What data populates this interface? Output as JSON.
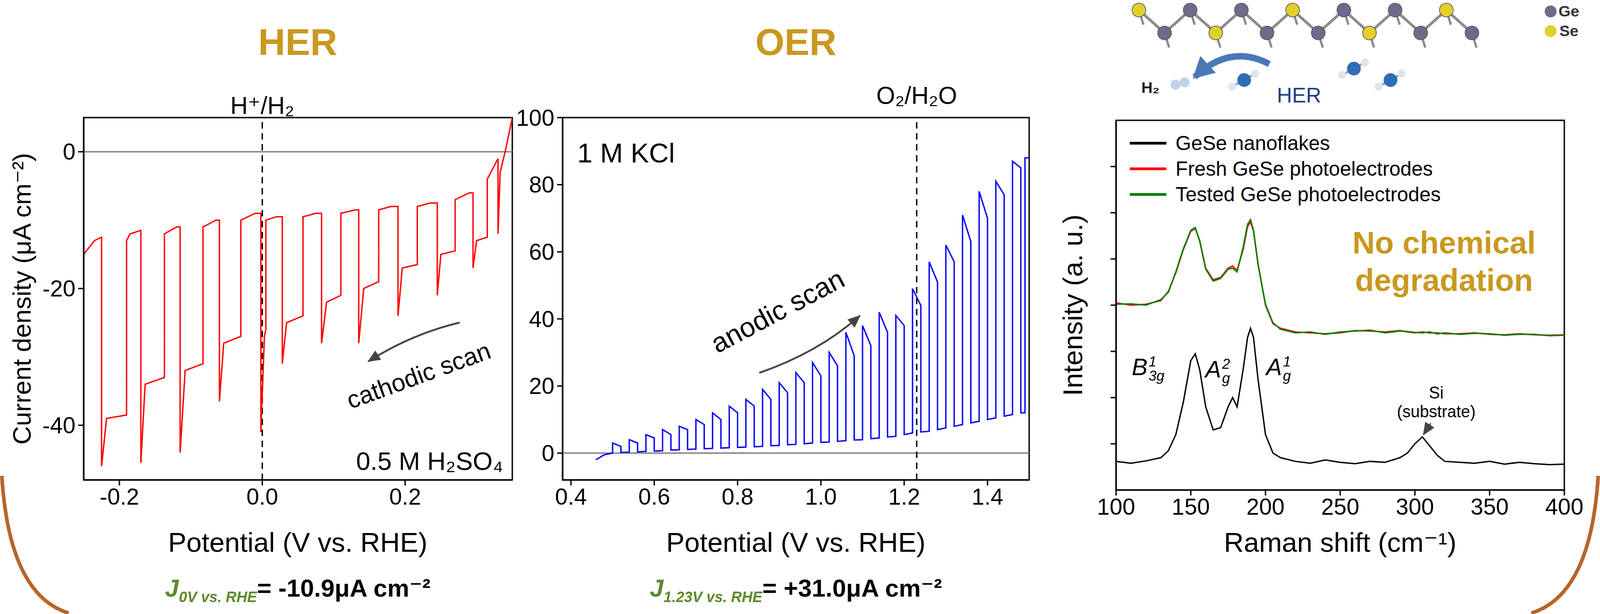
{
  "chart_data": [
    {
      "type": "line",
      "title": "HER",
      "xlabel": "Potential (V vs. RHE)",
      "ylabel": "Current density (μA cm⁻²)",
      "x": [
        -0.25,
        -0.235,
        -0.225,
        -0.225,
        -0.218,
        -0.19,
        -0.19,
        -0.185,
        -0.17,
        -0.17,
        -0.164,
        -0.137,
        -0.137,
        -0.12,
        -0.115,
        -0.115,
        -0.108,
        -0.083,
        -0.083,
        -0.065,
        -0.06,
        -0.06,
        -0.054,
        -0.03,
        -0.03,
        -0.01,
        -0.002,
        -0.002,
        0.003,
        0.005,
        0.005,
        0.02,
        0.028,
        0.028,
        0.034,
        0.057,
        0.057,
        0.075,
        0.083,
        0.083,
        0.09,
        0.11,
        0.11,
        0.13,
        0.135,
        0.135,
        0.142,
        0.163,
        0.163,
        0.18,
        0.19,
        0.19,
        0.196,
        0.217,
        0.217,
        0.235,
        0.245,
        0.245,
        0.25,
        0.27,
        0.27,
        0.29,
        0.295,
        0.295,
        0.3,
        0.315,
        0.315,
        0.325,
        0.33,
        0.33,
        0.333,
        0.34,
        0.35
      ],
      "series": [
        {
          "color": "#ff0000",
          "values": [
            -15,
            -13,
            -12.5,
            -46,
            -39,
            -38.5,
            -13,
            -12,
            -11.5,
            -45.5,
            -34,
            -33,
            -12,
            -11,
            -11,
            -44,
            -32,
            -31,
            -11,
            -10,
            -10,
            -36.5,
            -28,
            -27,
            -10,
            -9,
            -9,
            -41,
            -27,
            -26,
            -10,
            -9.5,
            -9.5,
            -31,
            -25,
            -24,
            -9.5,
            -9,
            -9,
            -28,
            -22,
            -21,
            -9,
            -8.5,
            -8.5,
            -28,
            -20,
            -19,
            -8.5,
            -8,
            -8,
            -24,
            -17,
            -16.5,
            -8,
            -7.5,
            -7.5,
            -21,
            -15,
            -14.5,
            -7,
            -6,
            -6,
            -17,
            -13,
            -12.5,
            -4,
            -2,
            -1,
            -12,
            -3,
            0,
            5
          ]
        }
      ],
      "xlim": [
        -0.25,
        0.35
      ],
      "xticks": [
        -0.2,
        {
          "value": 0,
          "label": "0.0"
        },
        0.2
      ],
      "ylim": [
        -48,
        5
      ],
      "yticks": [
        -40,
        -20,
        0
      ],
      "reference_lines": [
        {
          "y": 0,
          "color": "#808080",
          "line_style": "solid"
        },
        {
          "x": 0,
          "label": "H⁺/H₂",
          "color": "#000000",
          "line_style": "dashed"
        }
      ],
      "annotations": [
        {
          "text": "cathodic scan"
        },
        {
          "text": "0.5 M H₂SO₄"
        }
      ],
      "footer": {
        "symbol": "J",
        "subscript": "0V vs. RHE",
        "text": "= -10.9μA cm⁻²"
      }
    },
    {
      "type": "line",
      "title": "OER",
      "xlabel": "Potential (V vs. RHE)",
      "x": [
        0.46,
        0.48,
        0.5,
        0.5,
        0.52,
        0.52,
        0.54,
        0.54,
        0.56,
        0.56,
        0.58,
        0.58,
        0.6,
        0.6,
        0.62,
        0.62,
        0.64,
        0.64,
        0.66,
        0.66,
        0.68,
        0.68,
        0.7,
        0.7,
        0.72,
        0.72,
        0.74,
        0.74,
        0.76,
        0.76,
        0.78,
        0.78,
        0.8,
        0.8,
        0.82,
        0.82,
        0.84,
        0.84,
        0.86,
        0.86,
        0.88,
        0.88,
        0.9,
        0.9,
        0.92,
        0.92,
        0.94,
        0.94,
        0.96,
        0.96,
        0.98,
        0.98,
        1,
        1,
        1.02,
        1.02,
        1.04,
        1.04,
        1.06,
        1.06,
        1.08,
        1.08,
        1.1,
        1.1,
        1.12,
        1.12,
        1.14,
        1.14,
        1.16,
        1.16,
        1.18,
        1.18,
        1.2,
        1.2,
        1.22,
        1.22,
        1.24,
        1.24,
        1.26,
        1.26,
        1.28,
        1.28,
        1.3,
        1.3,
        1.32,
        1.32,
        1.34,
        1.34,
        1.36,
        1.36,
        1.38,
        1.38,
        1.4,
        1.4,
        1.42,
        1.42,
        1.44,
        1.44,
        1.46,
        1.46,
        1.48,
        1.48,
        1.49,
        1.49,
        1.5
      ],
      "series": [
        {
          "color": "#0000ff",
          "values": [
            -2,
            -0.5,
            0,
            3,
            2,
            0.2,
            0.3,
            4,
            3,
            0.4,
            0.5,
            5.5,
            4.5,
            0.6,
            0.7,
            7,
            5.5,
            0.9,
            1,
            8,
            7,
            1.1,
            1.2,
            10,
            8.5,
            1.3,
            1.4,
            12,
            10,
            1.5,
            1.6,
            14,
            12,
            1.7,
            1.8,
            16,
            14,
            1.9,
            2,
            19,
            16,
            2.2,
            2.3,
            21,
            18,
            2.5,
            2.6,
            24,
            21,
            2.8,
            3,
            27,
            23,
            3.2,
            3.3,
            30,
            26,
            3.5,
            3.7,
            36,
            29,
            3.9,
            4,
            38,
            32,
            4.3,
            4.5,
            42,
            36,
            4.8,
            5,
            41,
            38,
            5.5,
            6,
            49,
            44,
            6.3,
            6.5,
            57,
            51,
            7,
            7.5,
            62,
            57,
            8,
            8.5,
            71,
            63,
            9,
            9.5,
            78,
            70,
            10,
            10.5,
            81,
            77,
            11,
            11.5,
            87,
            85,
            12,
            12,
            88,
            88
          ]
        }
      ],
      "xlim": [
        0.38,
        1.5
      ],
      "xticks": [
        0.4,
        0.6,
        0.8,
        {
          "value": 1,
          "label": "1.0"
        },
        1.2,
        1.4
      ],
      "ylim": [
        -8,
        100
      ],
      "yticks": [
        0,
        20,
        40,
        60,
        80,
        100
      ],
      "reference_lines": [
        {
          "y": 0,
          "color": "#808080",
          "line_style": "solid"
        },
        {
          "x": 1.23,
          "label": "O₂/H₂O",
          "color": "#000000",
          "line_style": "dashed"
        }
      ],
      "annotations": [
        {
          "text": "1 M KCl"
        },
        {
          "text": "anodic scan"
        }
      ],
      "footer": {
        "symbol": "J",
        "subscript": "1.23V vs. RHE",
        "text": "= +31.0μA cm⁻²"
      }
    },
    {
      "type": "line",
      "xlabel": "Raman shift (cm⁻¹)",
      "ylabel": "Intensity (a. u.)",
      "x": [
        100,
        110,
        120,
        130,
        135,
        140,
        145,
        150,
        153,
        156,
        160,
        165,
        170,
        175,
        178,
        181,
        185,
        188,
        190,
        192,
        195,
        200,
        205,
        210,
        220,
        230,
        240,
        250,
        260,
        270,
        280,
        290,
        295,
        300,
        305,
        310,
        315,
        320,
        330,
        340,
        350,
        360,
        370,
        380,
        390,
        400
      ],
      "series": [
        {
          "name": "GeSe nanoflakes",
          "color": "#000000",
          "values": [
            0.62,
            0.58,
            0.63,
            0.7,
            0.85,
            1.2,
            1.9,
            2.8,
            2.95,
            2.6,
            1.8,
            1.3,
            1.35,
            1.8,
            2.0,
            1.8,
            2.6,
            3.3,
            3.5,
            3.3,
            2.4,
            1.2,
            0.8,
            0.7,
            0.62,
            0.58,
            0.65,
            0.6,
            0.57,
            0.62,
            0.6,
            0.7,
            0.8,
            1.0,
            1.15,
            0.95,
            0.75,
            0.62,
            0.6,
            0.58,
            0.62,
            0.56,
            0.6,
            0.57,
            0.55,
            0.56
          ]
        },
        {
          "name": "Fresh GeSe photoelectrodes",
          "color": "#ff0000",
          "values": [
            4.05,
            4.0,
            4.02,
            4.1,
            4.3,
            4.7,
            5.2,
            5.6,
            5.66,
            5.4,
            4.8,
            4.55,
            4.6,
            4.8,
            4.85,
            4.75,
            5.2,
            5.7,
            5.8,
            5.6,
            4.9,
            4.0,
            3.6,
            3.5,
            3.42,
            3.4,
            3.38,
            3.4,
            3.45,
            3.44,
            3.42,
            3.45,
            3.42,
            3.4,
            3.42,
            3.4,
            3.4,
            3.38,
            3.38,
            3.4,
            3.37,
            3.36,
            3.38,
            3.36,
            3.35,
            3.36
          ]
        },
        {
          "name": "Tested GeSe photoelectrodes",
          "color": "#008000",
          "values": [
            4.02,
            4.03,
            4.0,
            4.12,
            4.28,
            4.72,
            5.22,
            5.62,
            5.68,
            5.38,
            4.78,
            4.52,
            4.58,
            4.78,
            4.8,
            4.72,
            5.25,
            5.75,
            5.85,
            5.62,
            4.88,
            4.02,
            3.62,
            3.48,
            3.4,
            3.42,
            3.37,
            3.42,
            3.44,
            3.46,
            3.4,
            3.44,
            3.43,
            3.41,
            3.4,
            3.42,
            3.38,
            3.4,
            3.37,
            3.39,
            3.38,
            3.35,
            3.37,
            3.37,
            3.34,
            3.35
          ]
        }
      ],
      "xlim": [
        100,
        400
      ],
      "xticks": [
        100,
        150,
        200,
        250,
        300,
        350,
        400
      ],
      "ylim": [
        0,
        8
      ],
      "yticks": [
        1,
        2,
        3,
        4,
        5,
        6,
        7
      ],
      "tick_labels": "x",
      "legend": "upper left",
      "annotations": [
        {
          "text": "No chemical degradation"
        },
        {
          "lines": [
            "Si",
            "(substrate)"
          ]
        }
      ],
      "peak_labels": [
        {
          "text": "B",
          "superscript": "1",
          "subscript": "3g"
        },
        {
          "text": "A",
          "superscript": "2",
          "subscript": "g"
        },
        {
          "text": "A",
          "superscript": "1",
          "subscript": "g"
        }
      ],
      "diagram": {
        "atoms": [
          {
            "label": "Ge",
            "color": "#6D6A8C"
          },
          {
            "label": "Se",
            "color": "#E3CF2A"
          }
        ],
        "product": "H₂",
        "reaction": "HER"
      }
    }
  ]
}
